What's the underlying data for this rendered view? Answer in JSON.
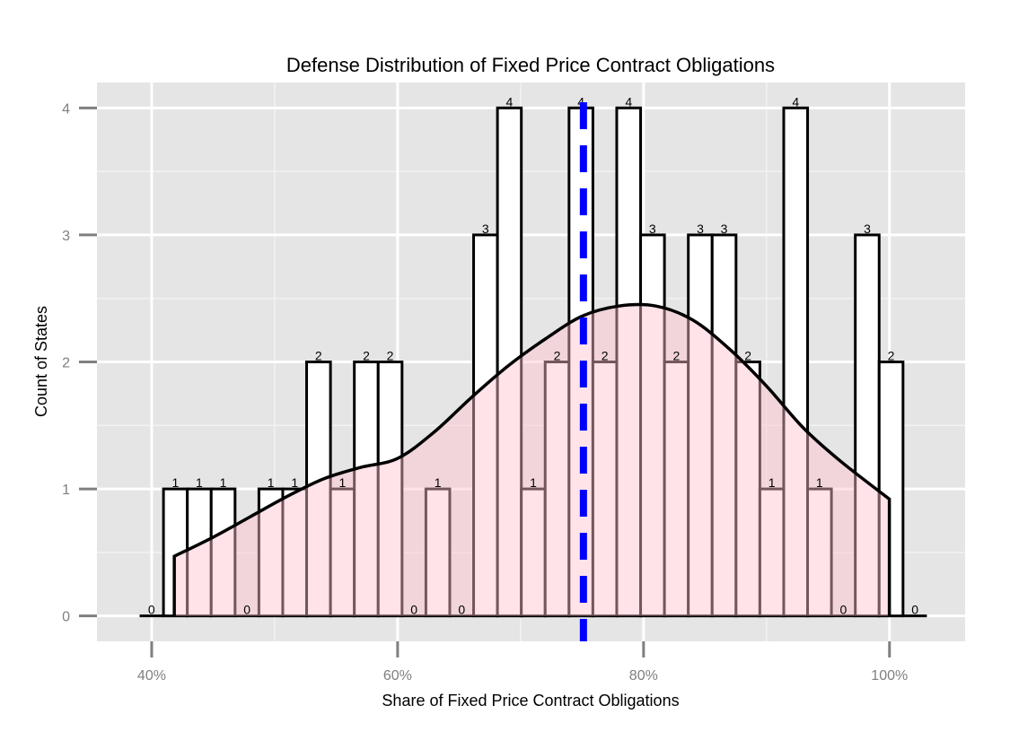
{
  "chart_data": {
    "type": "bar",
    "title": "Defense Distribution of Fixed Price Contract Obligations",
    "xlabel": "Share of Fixed Price Contract Obligations",
    "ylabel": "Count of States",
    "x_tick_values": [
      0.4,
      0.6,
      0.8,
      1.0
    ],
    "x_tick_labels": [
      "40%",
      "60%",
      "80%",
      "100%"
    ],
    "y_tick_values": [
      0,
      1,
      2,
      3,
      4
    ],
    "y_tick_labels": [
      "0",
      "1",
      "2",
      "3",
      "4"
    ],
    "xlim": [
      0.3555,
      1.0615
    ],
    "ylim": [
      -0.2,
      4.2
    ],
    "grid": true,
    "bin_width": 0.0194,
    "bin_centers": [
      0.3999,
      0.4193,
      0.4387,
      0.4581,
      0.4775,
      0.4969,
      0.5163,
      0.5357,
      0.5551,
      0.5745,
      0.5939,
      0.6133,
      0.6327,
      0.6521,
      0.6715,
      0.6909,
      0.7103,
      0.7297,
      0.7491,
      0.7685,
      0.7879,
      0.8073,
      0.8267,
      0.8461,
      0.8655,
      0.8849,
      0.9043,
      0.9237,
      0.9431,
      0.9625,
      0.9819,
      1.0013,
      1.0207
    ],
    "counts": [
      0,
      1,
      1,
      1,
      0,
      1,
      1,
      2,
      1,
      2,
      2,
      0,
      1,
      0,
      3,
      4,
      1,
      2,
      4,
      2,
      4,
      3,
      2,
      3,
      3,
      2,
      1,
      4,
      1,
      0,
      3,
      2,
      0
    ],
    "density_x": [
      0.4184,
      0.45,
      0.48,
      0.51,
      0.54,
      0.57,
      0.6,
      0.63,
      0.66,
      0.69,
      0.72,
      0.75,
      0.78,
      0.81,
      0.84,
      0.87,
      0.9,
      0.93,
      0.96,
      0.9999
    ],
    "density_y": [
      0.47,
      0.62,
      0.78,
      0.94,
      1.08,
      1.17,
      1.24,
      1.45,
      1.72,
      1.97,
      2.18,
      2.36,
      2.44,
      2.44,
      2.33,
      2.1,
      1.81,
      1.48,
      1.22,
      0.92
    ],
    "vline_x": 0.7511,
    "colors": {
      "panel_background": "#e5e5e5",
      "grid_major": "#ffffff",
      "grid_minor": "#f2f2f2",
      "bar_fill": "#ffffff",
      "bar_outline": "#000000",
      "density_fill": "#ffc0cb",
      "density_line": "#000000",
      "vline": "#0000ff",
      "tick_text": "#7f7f7f"
    }
  }
}
